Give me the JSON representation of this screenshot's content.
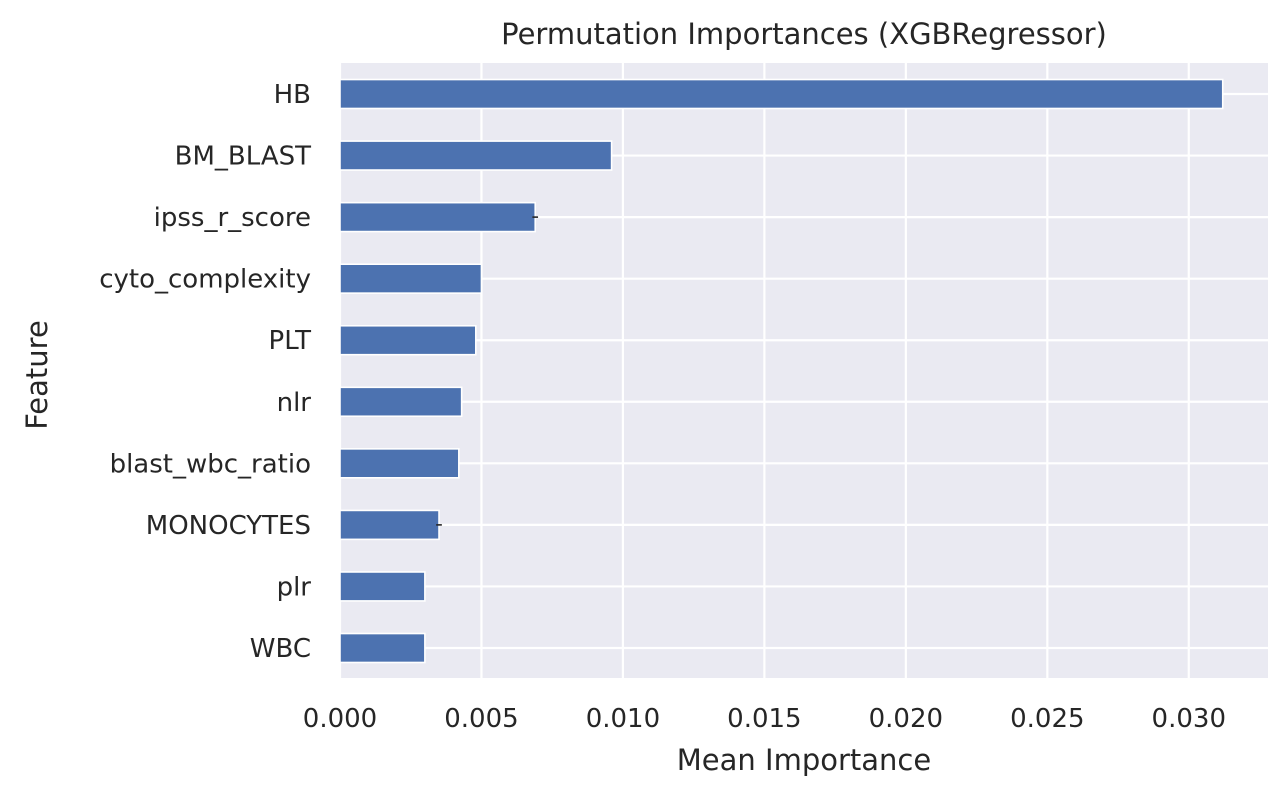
{
  "chart_data": {
    "type": "bar",
    "orientation": "horizontal",
    "title": "Permutation Importances (XGBRegressor)",
    "xlabel": "Mean Importance",
    "ylabel": "Feature",
    "categories": [
      "HB",
      "BM_BLAST",
      "ipss_r_score",
      "cyto_complexity",
      "PLT",
      "nlr",
      "blast_wbc_ratio",
      "MONOCYTES",
      "plr",
      "WBC"
    ],
    "values": [
      0.0312,
      0.0096,
      0.0069,
      0.005,
      0.0048,
      0.0043,
      0.0042,
      0.0035,
      0.003,
      0.003
    ],
    "errors": [
      0.0,
      0.0,
      0.0001,
      0.0,
      0.0,
      0.0,
      0.0,
      0.0001,
      0.0,
      0.0
    ],
    "xlim": [
      0.0,
      0.0328
    ],
    "xticks": [
      "0.000",
      "0.005",
      "0.010",
      "0.015",
      "0.020",
      "0.025",
      "0.030"
    ],
    "xtick_values": [
      0.0,
      0.005,
      0.01,
      0.015,
      0.02,
      0.025,
      0.03
    ],
    "grid": true,
    "style": "seaborn-darkgrid",
    "colors": {
      "bar": "#4c72b0",
      "background": "#eaeaf2",
      "grid": "#ffffff",
      "text": "#262626"
    }
  }
}
